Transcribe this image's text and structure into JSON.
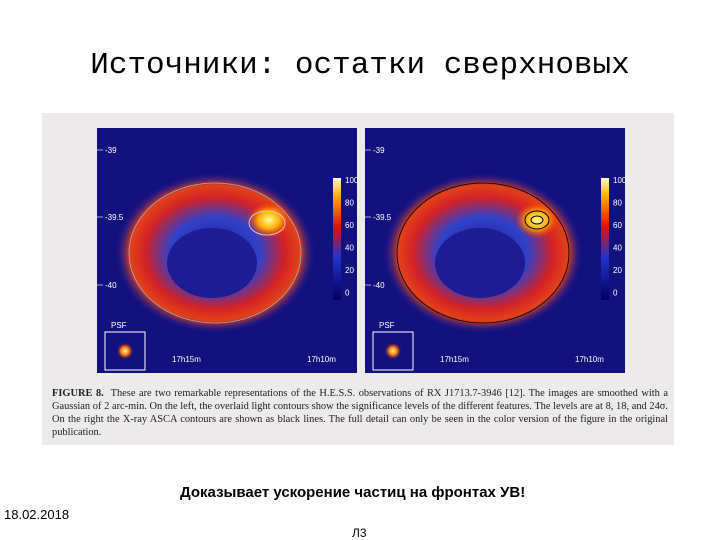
{
  "title": "Источники: остатки сверхновых",
  "figure": {
    "panels": [
      {
        "y_labels": [
          "-39",
          "-39.5",
          "-40"
        ],
        "colorbar_labels": [
          "100",
          "80",
          "60",
          "40",
          "20",
          "0"
        ],
        "psf_label": "PSF",
        "x_labels": [
          "17h15m",
          "17h10m"
        ]
      },
      {
        "y_labels": [
          "-39",
          "-39.5",
          "-40"
        ],
        "colorbar_labels": [
          "100",
          "80",
          "60",
          "40",
          "20",
          "0"
        ],
        "psf_label": "PSF",
        "x_labels": [
          "17h15m",
          "17h10m"
        ]
      }
    ],
    "caption_label": "FIGURE 8.",
    "caption_text": "These are two remarkable representations of the H.E.S.S. observations of RX J1713.7-3946 [12]. The images are smoothed with a Gaussian of 2 arc-min. On the left, the overlaid light contours show the significance levels of the different features. The levels are at 8, 18, and 24σ. On the right the X-ray ASCA contours are shown as black lines. The full detail can only be seen in the color version of the figure in the original publication."
  },
  "footer": {
    "statement": "Доказывает ускорение частиц на фронтах УВ!",
    "date": "18.02.2018",
    "slide_number": "Л3"
  }
}
